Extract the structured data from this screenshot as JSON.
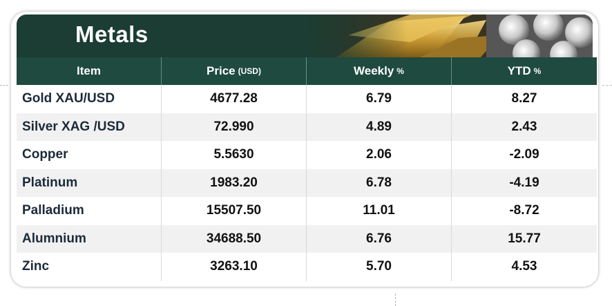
{
  "title": "Metals",
  "columns": [
    {
      "label": "Item",
      "unit": ""
    },
    {
      "label": "Price",
      "unit": "(USD)"
    },
    {
      "label": "Weekly",
      "unit": "%"
    },
    {
      "label": "YTD",
      "unit": "%"
    }
  ],
  "rows": [
    {
      "item": "Gold XAU/USD",
      "price": "4677.28",
      "weekly": "6.79",
      "ytd": "8.27"
    },
    {
      "item": "Silver XAG /USD",
      "price": "72.990",
      "weekly": "4.89",
      "ytd": "2.43"
    },
    {
      "item": "Copper",
      "price": "5.5630",
      "weekly": "2.06",
      "ytd": "-2.09"
    },
    {
      "item": "Platinum",
      "price": "1983.20",
      "weekly": "6.78",
      "ytd": "-4.19"
    },
    {
      "item": "Palladium",
      "price": "15507.50",
      "weekly": "11.01",
      "ytd": "-8.72"
    },
    {
      "item": "Alumnium",
      "price": "34688.50",
      "weekly": "6.76",
      "ytd": "15.77"
    },
    {
      "item": "Zinc",
      "price": "3263.10",
      "weekly": "5.70",
      "ytd": "4.53"
    }
  ],
  "colors": {
    "header_bg": "#1f4a3f",
    "banner_bg": "#1b3d33",
    "stripe": "#f1f1f1"
  }
}
